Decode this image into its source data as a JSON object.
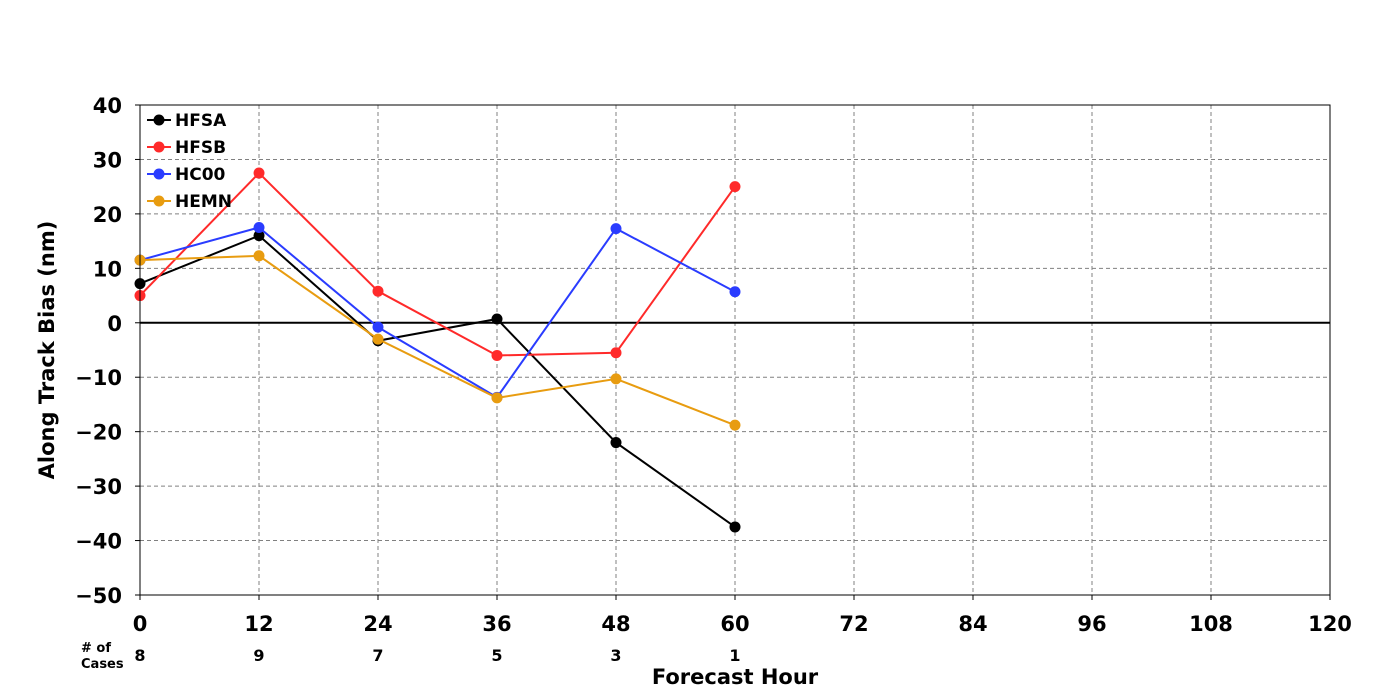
{
  "chart_data": {
    "type": "line",
    "xlabel": "Forecast Hour",
    "ylabel": "Along Track Bias (nm)",
    "xlim": [
      0,
      120
    ],
    "ylim": [
      -50,
      40
    ],
    "xticks": [
      0,
      12,
      24,
      36,
      48,
      60,
      72,
      84,
      96,
      108,
      120
    ],
    "yticks": [
      40,
      30,
      20,
      10,
      0,
      -10,
      -20,
      -30,
      -40,
      -50
    ],
    "grid": true,
    "legend_position": "top-left",
    "cases_label_line1": "# of",
    "cases_label_line2": "Cases",
    "cases": [
      {
        "x": 0,
        "n": "8"
      },
      {
        "x": 12,
        "n": "9"
      },
      {
        "x": 24,
        "n": "7"
      },
      {
        "x": 36,
        "n": "5"
      },
      {
        "x": 48,
        "n": "3"
      },
      {
        "x": 60,
        "n": "1"
      }
    ],
    "series": [
      {
        "name": "HFSA",
        "color": "#000000",
        "x": [
          0,
          12,
          24,
          36,
          48,
          60
        ],
        "y": [
          7.2,
          16.0,
          -3.3,
          0.7,
          -22.0,
          -37.5
        ]
      },
      {
        "name": "HFSB",
        "color": "#ff2a2a",
        "x": [
          0,
          12,
          24,
          36,
          48,
          60
        ],
        "y": [
          5.0,
          27.5,
          5.8,
          -6.0,
          -5.5,
          25.0
        ]
      },
      {
        "name": "HC00",
        "color": "#2a3cff",
        "x": [
          0,
          12,
          24,
          36,
          48,
          60
        ],
        "y": [
          11.5,
          17.5,
          -0.8,
          -13.7,
          17.3,
          5.7
        ]
      },
      {
        "name": "HEMN",
        "color": "#e89c10",
        "x": [
          0,
          12,
          24,
          36,
          48,
          60
        ],
        "y": [
          11.5,
          12.3,
          -3.0,
          -13.8,
          -10.3,
          -18.8
        ]
      }
    ]
  }
}
